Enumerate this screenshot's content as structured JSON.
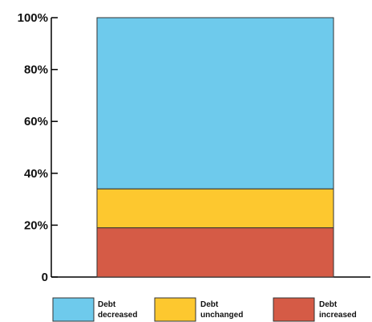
{
  "chart_data": {
    "type": "bar",
    "stacked": true,
    "categories": [
      ""
    ],
    "series": [
      {
        "name": "Debt increased",
        "values": [
          19
        ],
        "color": "#d55b46"
      },
      {
        "name": "Debt unchanged",
        "values": [
          15
        ],
        "color": "#fdc82f"
      },
      {
        "name": "Debt decreased",
        "values": [
          66
        ],
        "color": "#6ecaec"
      }
    ],
    "legend_order": [
      {
        "line1": "Debt",
        "line2": "decreased",
        "series": 2
      },
      {
        "line1": "Debt",
        "line2": "unchanged",
        "series": 1
      },
      {
        "line1": "Debt",
        "line2": "increased",
        "series": 0
      }
    ],
    "yticks": [
      "0",
      "20%",
      "40%",
      "60%",
      "80%",
      "100%"
    ],
    "ylim": [
      0,
      100
    ],
    "grid": false,
    "legend_position": "bottom"
  }
}
